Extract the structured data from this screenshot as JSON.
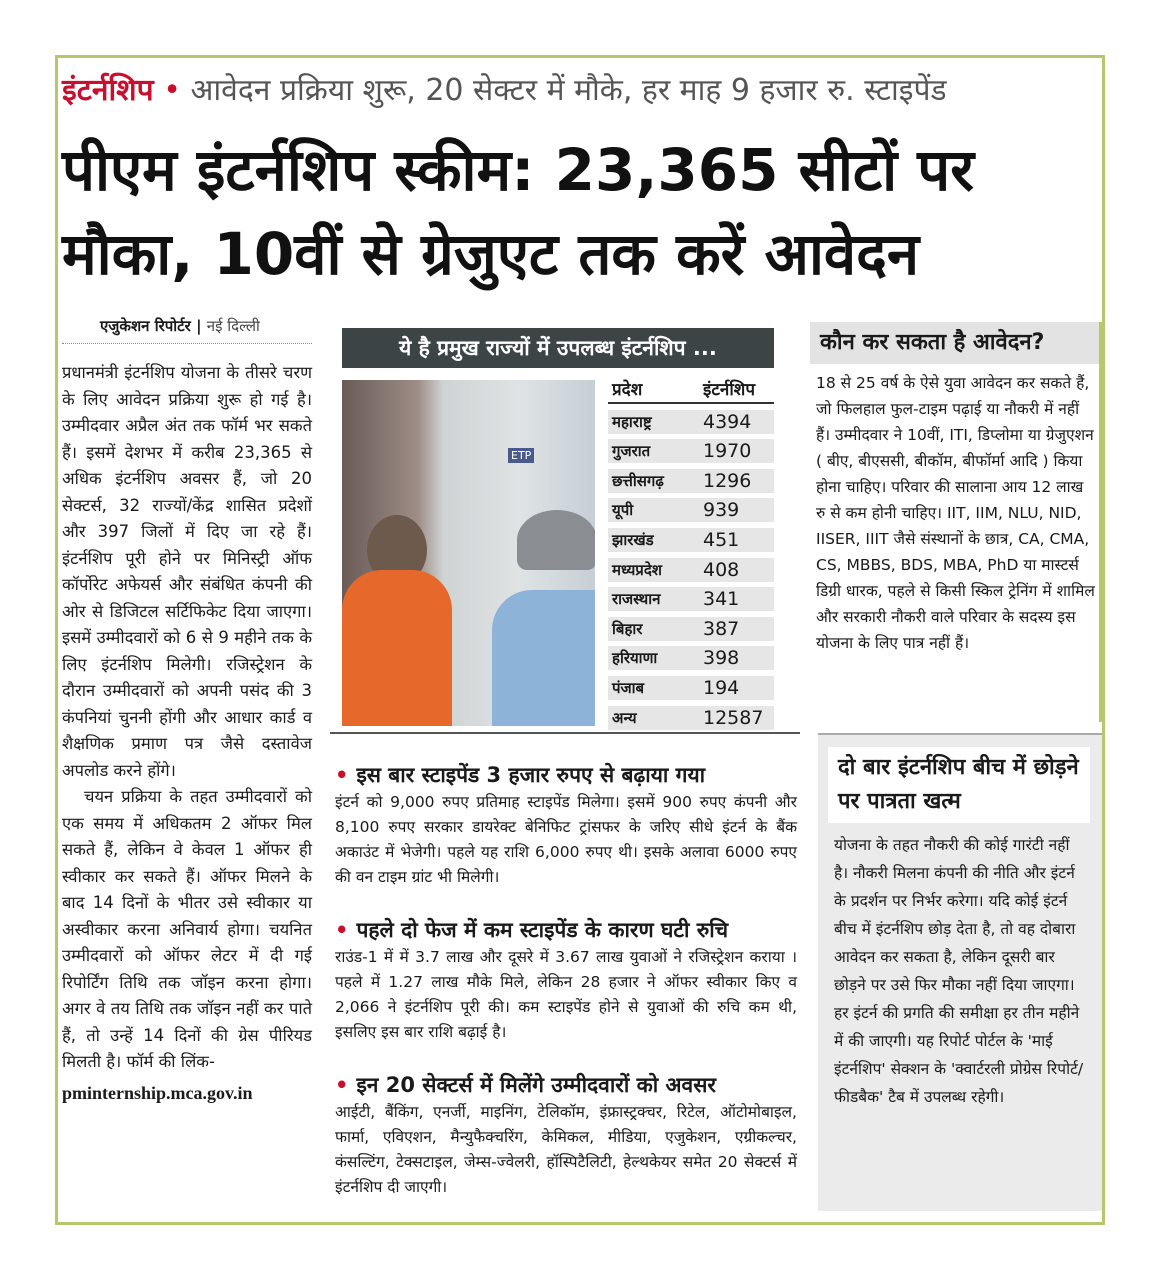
{
  "kicker": {
    "tag": "इंटर्नशिप",
    "bullet": "•",
    "text": "आवेदन प्रक्रिया शुरू, 20 सेक्टर में मौके, हर माह 9 हजार रु. स्टाइपेंड"
  },
  "headline": "पीएम इंटर्नशिप स्कीम: 23,365 सीटों पर मौका, 10वीं से ग्रेजुएट तक करें आवेदन",
  "byline": {
    "reporter": "एजुकेशन रिपोर्टर",
    "separator": "|",
    "city": "नई दिल्ली"
  },
  "left_column": {
    "p1": "प्रधानमंत्री इंटर्नशिप योजना के तीसरे चरण के लिए आवेदन प्रक्रिया शुरू हो गई है। उम्मीदवार अप्रैल अंत तक फॉर्म भर सकते हैं। इसमें देशभर में करीब 23,365 से अधिक इंटर्नशिप अवसर हैं, जो 20 सेक्टर्स, 32 राज्यों/केंद्र शासित प्रदेशों और 397 जिलों में दिए जा रहे हैं। इंटर्नशिप पूरी होने पर मिनिस्ट्री ऑफ कॉर्पोरेट अफेयर्स और संबंधित कंपनी की ओर से डिजिटल सर्टिफिकेट दिया जाएगा। इसमें उम्मीदवारों को 6 से 9 महीने तक के लिए इंटर्नशिप मिलेगी। रजिस्ट्रेशन के दौरान उम्मीदवारों को अपनी पसंद की 3 कंपनियां चुननी होंगी और आधार कार्ड व शैक्षणिक प्रमाण पत्र जैसे दस्तावेज अपलोड करने होंगे।",
    "p2": "चयन प्रक्रिया के तहत उम्मीदवारों को एक समय में अधिकतम 2 ऑफर मिल सकते हैं, लेकिन वे केवल 1 ऑफर ही स्वीकार कर सकते हैं। ऑफर मिलने के बाद 14 दिनों के भीतर उसे स्वीकार या अस्वीकार करना अनिवार्य होगा। चयनित उम्मीदवारों को ऑफर लेटर में दी गई रिपोर्टिंग तिथि तक जॉइन करना होगा। अगर वे तय तिथि तक जॉइन नहीं कर पाते हैं, तो उन्हें 14 दिनों की ग्रेस पीरियड मिलती है। फॉर्म की लिंक-",
    "link": "pminternship.mca.gov.in"
  },
  "table": {
    "title": "ये है प्रमुख राज्यों में उपलब्ध इंटर्नशिप ...",
    "headers": [
      "प्रदेश",
      "इंटर्नशिप"
    ],
    "rows": [
      [
        "महाराष्ट्र",
        "4394"
      ],
      [
        "गुजरात",
        "1970"
      ],
      [
        "छत्तीसगढ़",
        "1296"
      ],
      [
        "यूपी",
        "939"
      ],
      [
        "झारखंड",
        "451"
      ],
      [
        "मध्यप्रदेश",
        "408"
      ],
      [
        "राजस्थान",
        "341"
      ],
      [
        "बिहार",
        "387"
      ],
      [
        "हरियाणा",
        "398"
      ],
      [
        "पंजाब",
        "194"
      ],
      [
        "अन्य",
        "12587"
      ]
    ],
    "photo_label": "ETP"
  },
  "sections": [
    {
      "title": "इस बार स्टाइपेंड 3 हजार रुपए से बढ़ाया गया",
      "body": "इंटर्न को 9,000 रुपए प्रतिमाह स्टाइपेंड मिलेगा। इसमें 900 रुपए कंपनी और 8,100 रुपए सरकार डायरेक्ट बेनिफिट ट्रांसफर के जरिए सीधे इंटर्न के बैंक अकाउंट में भेजेगी। पहले यह राशि 6,000 रुपए थी। इसके अलावा 6000 रुपए की वन टाइम ग्रांट भी मिलेगी।"
    },
    {
      "title": "पहले दो फेज में कम स्टाइपेंड के कारण घटी रुचि",
      "body": "राउंड-1 में में 3.7 लाख और दूसरे में 3.67 लाख युवाओं ने रजिस्ट्रेशन कराया । पहले में 1.27 लाख मौके मिले, लेकिन 28 हजार ने ऑफर स्वीकार किए व 2,066 ने इंटर्नशिप पूरी की। कम स्टाइपेंड होने से युवाओं की रुचि कम थी, इसलिए इस बार राशि बढ़ाई है।"
    },
    {
      "title": "इन 20 सेक्टर्स में मिलेंगे उम्मीदवारों को अवसर",
      "body": "आईटी, बैंकिंग, एनर्जी, माइनिंग, टेलिकॉम, इंफ्रास्ट्रक्चर, रिटेल, ऑटोमोबाइल, फार्मा, एविएशन, मैन्युफैक्चरिंग, केमिकल, मीडिया, एजुकेशन, एग्रीकल्चर, कंसल्टिंग, टेक्सटाइल, जेम्स-ज्वेलरी, हॉस्पिटैलिटी, हेल्थकेयर समेत 20 सेक्टर्स में इंटर्नशिप दी जाएगी।"
    }
  ],
  "bullet": "•",
  "eligibility": {
    "title": "कौन कर सकता है आवेदन?",
    "body": "18 से 25 वर्ष के ऐसे युवा आवेदन कर सकते हैं, जो फिलहाल फुल-टाइम पढ़ाई या नौकरी में नहीं हैं। उम्मीदवार ने 10वीं, ITI, डिप्लोमा या ग्रेजुएशन ( बीए, बीएससी, बीकॉम, बीफॉर्मा आदि ) किया होना चाहिए। परिवार की सालाना आय 12 लाख रु से कम होनी चाहिए। IIT, IIM, NLU, NID, IISER, IIIT जैसे संस्थानों के छात्र, CA, CMA, CS, MBBS, BDS, MBA, PhD या मास्टर्स डिग्री धारक, पहले से किसी स्किल ट्रेनिंग में शामिल और सरकारी नौकरी वाले परिवार के सदस्य इस योजना के लिए पात्र नहीं हैं।"
  },
  "dropout": {
    "title": "दो बार इंटर्नशिप बीच में छोड़ने पर पात्रता खत्म",
    "body": "योजना के तहत नौकरी की कोई गारंटी नहीं है। नौकरी मिलना कंपनी की नीति और इंटर्न के प्रदर्शन पर निर्भर करेगा। यदि कोई इंटर्न बीच में इंटर्नशिप छोड़ देता है, तो वह दोबारा आवेदन कर सकता है, लेकिन दूसरी बार छोड़ने पर उसे फिर मौका नहीं दिया जाएगा। हर इंटर्न की प्रगति की समीक्षा हर तीन महीने में की जाएगी। यह रिपोर्ट पोर्टल के 'माई इंटर्नशिप' सेक्शन के 'क्वार्टरली प्रोग्रेस रिपोर्ट/ फीडबैक' टैब में उपलब्ध रहेगी।"
  },
  "colors": {
    "frame": "#b5c96a",
    "accent": "#c8102e",
    "table_header": "#3c4446"
  }
}
